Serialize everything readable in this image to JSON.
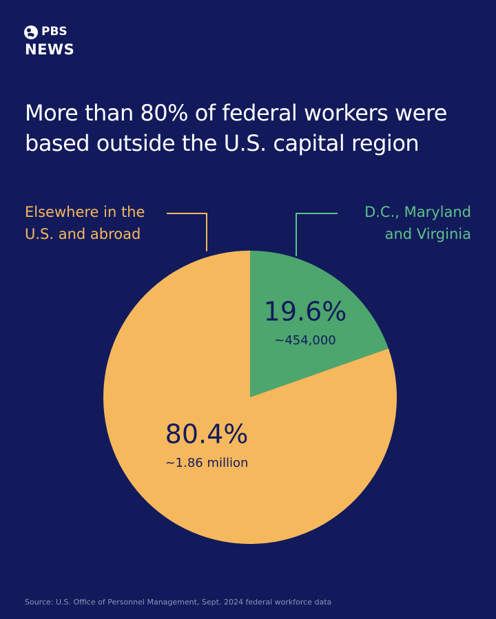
{
  "logo": {
    "brand": "PBS",
    "section": "NEWS"
  },
  "chart_data": {
    "type": "pie",
    "title": "More than 80% of federal workers were based outside the U.S. capital region",
    "categories": [
      "D.C., Maryland and Virginia",
      "Elsewhere in the U.S. and abroad"
    ],
    "values": [
      19.6,
      80.4
    ],
    "value_labels": [
      "19.6%",
      "80.4%"
    ],
    "count_labels": [
      "~454,000",
      "~1.86 million"
    ],
    "colors": [
      "#4ca66d",
      "#f6b85d"
    ],
    "label_colors": [
      "#5ec28a",
      "#f6b85d"
    ]
  },
  "source": "Source: U.S. Office of Personnel Management, Sept. 2024 federal workforce data"
}
